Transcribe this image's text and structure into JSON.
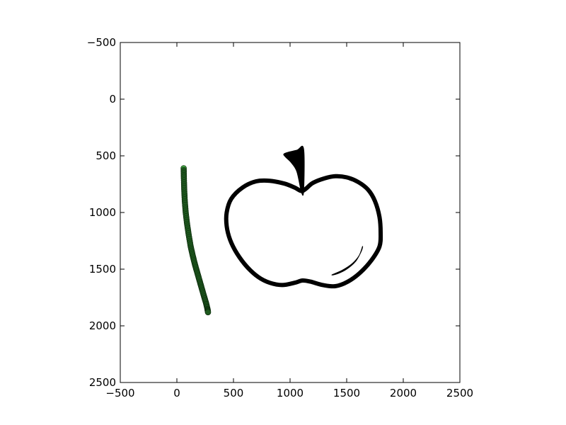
{
  "chart_data": {
    "type": "scatter",
    "title": "",
    "xlabel": "",
    "ylabel": "",
    "xlim": [
      -500,
      2500
    ],
    "ylim": [
      2500,
      -500
    ],
    "y_axis_inverted": true,
    "grid": false,
    "legend": "none",
    "x_ticks": [
      -500,
      0,
      500,
      1000,
      1500,
      2000,
      2500
    ],
    "x_tick_labels": [
      "−500",
      "0",
      "500",
      "1000",
      "1500",
      "2000",
      "2500"
    ],
    "y_ticks": [
      -500,
      0,
      500,
      1000,
      1500,
      2000,
      2500
    ],
    "y_tick_labels": [
      "−500",
      "0",
      "500",
      "1000",
      "1500",
      "2000",
      "2500"
    ],
    "series": [
      {
        "color": "#1f5a1f",
        "start_color": "#2e9e2e",
        "x": [
          60,
          62,
          65,
          70,
          78,
          90,
          105,
          122,
          140,
          160,
          180,
          200,
          220,
          240,
          258,
          270,
          275
        ],
        "y": [
          610,
          700,
          800,
          900,
          1000,
          1100,
          1200,
          1300,
          1380,
          1460,
          1530,
          1600,
          1670,
          1740,
          1800,
          1850,
          1880
        ]
      }
    ],
    "background_image": {
      "subject": "apple outline drawing",
      "color": "#000000",
      "outline": [
        [
          1100,
          810
        ],
        [
          1040,
          780
        ],
        [
          950,
          745
        ],
        [
          820,
          720
        ],
        [
          700,
          725
        ],
        [
          580,
          780
        ],
        [
          480,
          880
        ],
        [
          440,
          1000
        ],
        [
          440,
          1120
        ],
        [
          470,
          1240
        ],
        [
          530,
          1360
        ],
        [
          620,
          1480
        ],
        [
          720,
          1570
        ],
        [
          820,
          1620
        ],
        [
          930,
          1640
        ],
        [
          1040,
          1620
        ],
        [
          1110,
          1600
        ],
        [
          1180,
          1610
        ],
        [
          1290,
          1640
        ],
        [
          1400,
          1650
        ],
        [
          1510,
          1610
        ],
        [
          1620,
          1530
        ],
        [
          1720,
          1420
        ],
        [
          1790,
          1300
        ],
        [
          1800,
          1180
        ],
        [
          1790,
          1040
        ],
        [
          1750,
          900
        ],
        [
          1690,
          800
        ],
        [
          1600,
          730
        ],
        [
          1500,
          690
        ],
        [
          1400,
          680
        ],
        [
          1300,
          700
        ],
        [
          1200,
          740
        ],
        [
          1140,
          790
        ]
      ],
      "stem": [
        [
          1100,
          820
        ],
        [
          1120,
          810
        ],
        [
          1120,
          440
        ],
        [
          1060,
          450
        ],
        [
          950,
          480
        ],
        [
          960,
          510
        ],
        [
          1010,
          560
        ],
        [
          1060,
          640
        ]
      ],
      "highlight": [
        [
          1370,
          1550
        ],
        [
          1460,
          1510
        ],
        [
          1550,
          1450
        ],
        [
          1610,
          1380
        ],
        [
          1640,
          1300
        ],
        [
          1630,
          1340
        ],
        [
          1580,
          1430
        ],
        [
          1500,
          1500
        ],
        [
          1420,
          1540
        ]
      ]
    }
  }
}
